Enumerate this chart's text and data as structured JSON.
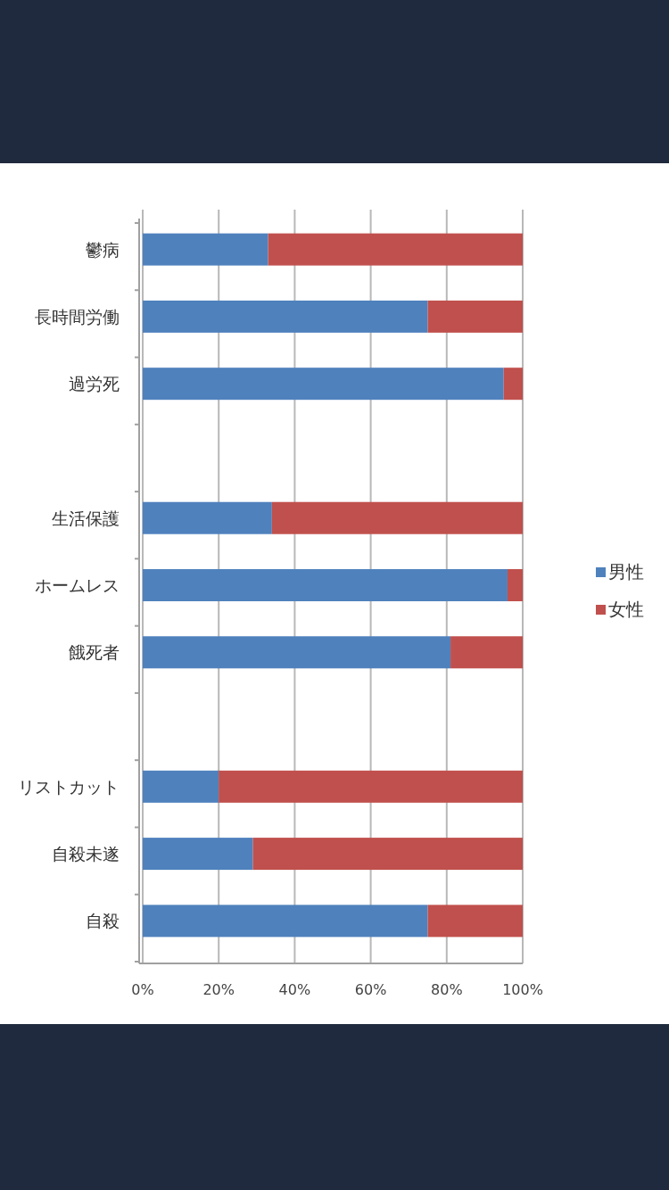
{
  "chart_data": {
    "type": "bar",
    "orientation": "horizontal",
    "stacked": true,
    "categories": [
      "鬱病",
      "長時間労働",
      "過労死",
      null,
      "生活保護",
      "ホームレス",
      "餓死者",
      null,
      "リストカット",
      "自殺未遂",
      "自殺"
    ],
    "series": [
      {
        "name": "男性",
        "color": "#4f81bd",
        "values": [
          33,
          75,
          95,
          null,
          34,
          96,
          81,
          null,
          20,
          29,
          75
        ]
      },
      {
        "name": "女性",
        "color": "#c0504d",
        "values": [
          67,
          25,
          5,
          null,
          66,
          4,
          19,
          null,
          80,
          71,
          25
        ]
      }
    ],
    "xlim": [
      0,
      100
    ],
    "xticks": [
      {
        "value": 0,
        "label": "0%"
      },
      {
        "value": 20,
        "label": "20%"
      },
      {
        "value": 40,
        "label": "40%"
      },
      {
        "value": 60,
        "label": "60%"
      },
      {
        "value": 80,
        "label": "80%"
      },
      {
        "value": 100,
        "label": "100%"
      }
    ],
    "grid": "x",
    "legend": "right"
  }
}
